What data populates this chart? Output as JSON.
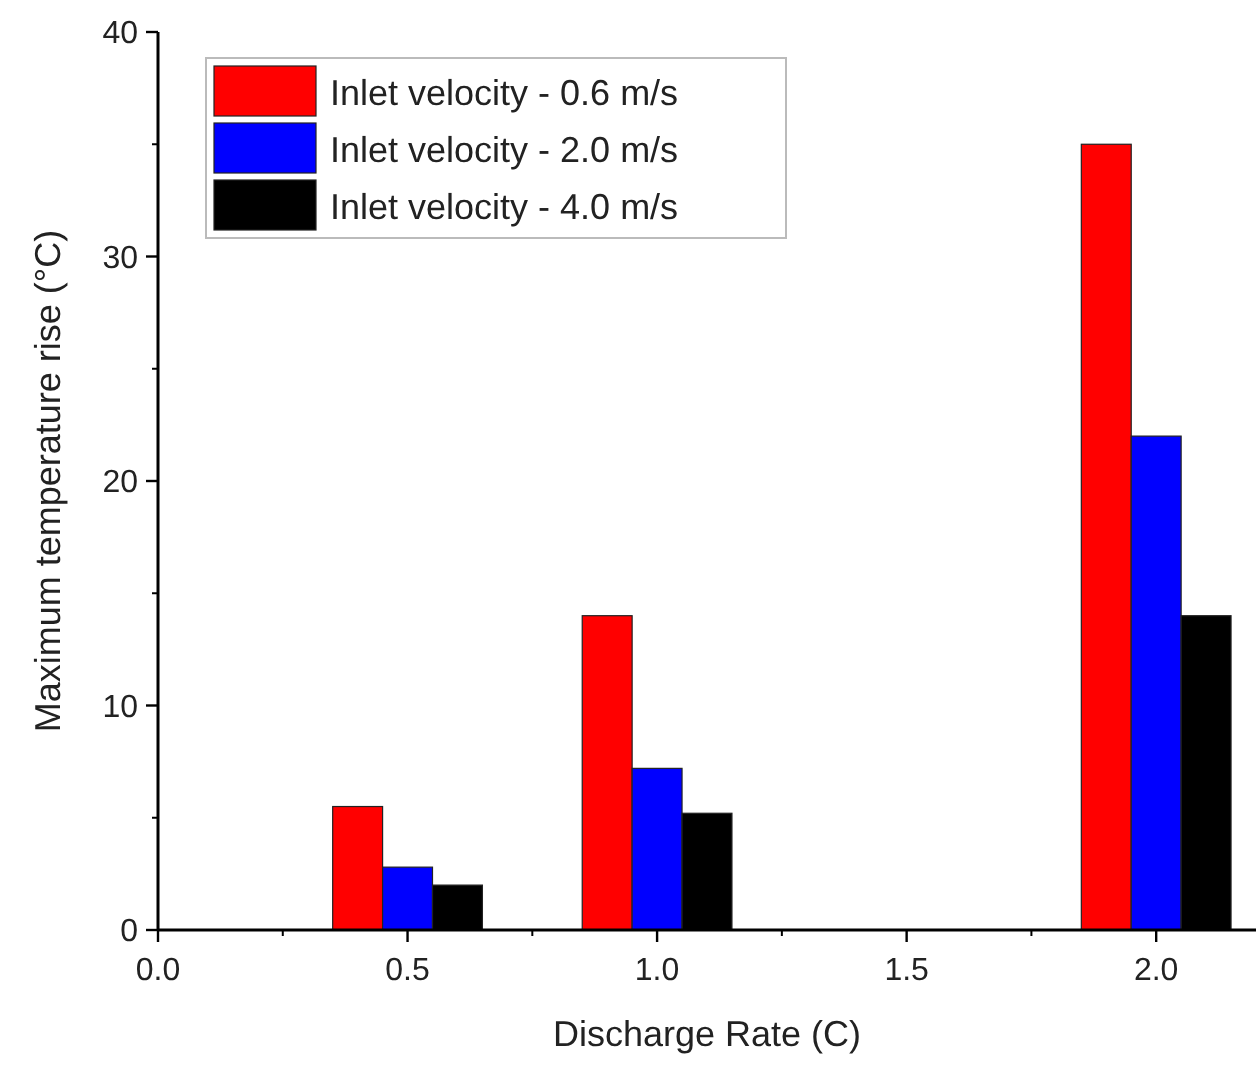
{
  "chart_data": {
    "type": "bar",
    "xlabel": "Discharge Rate (C)",
    "ylabel": "Maximum temperature rise (°C)",
    "x": [
      0.5,
      1.0,
      2.0
    ],
    "series": [
      {
        "name": "Inlet velocity - 0.6 m/s",
        "color": "#ff0000",
        "values": [
          5.5,
          14,
          35
        ]
      },
      {
        "name": "Inlet velocity - 2.0 m/s",
        "color": "#0000ff",
        "values": [
          2.8,
          7.2,
          22
        ]
      },
      {
        "name": "Inlet velocity - 4.0 m/s",
        "color": "#000000",
        "values": [
          2.0,
          5.2,
          14
        ]
      }
    ],
    "xlim": [
      0,
      2.2
    ],
    "ylim": [
      0,
      40
    ],
    "xticks": [
      {
        "value": 0,
        "label": "0.0"
      },
      0.5,
      {
        "value": 1,
        "label": "1.0"
      },
      1.5,
      {
        "value": 2,
        "label": "2.0"
      }
    ],
    "yticks": [
      0,
      10,
      20,
      30,
      40
    ],
    "legend": "top left"
  }
}
